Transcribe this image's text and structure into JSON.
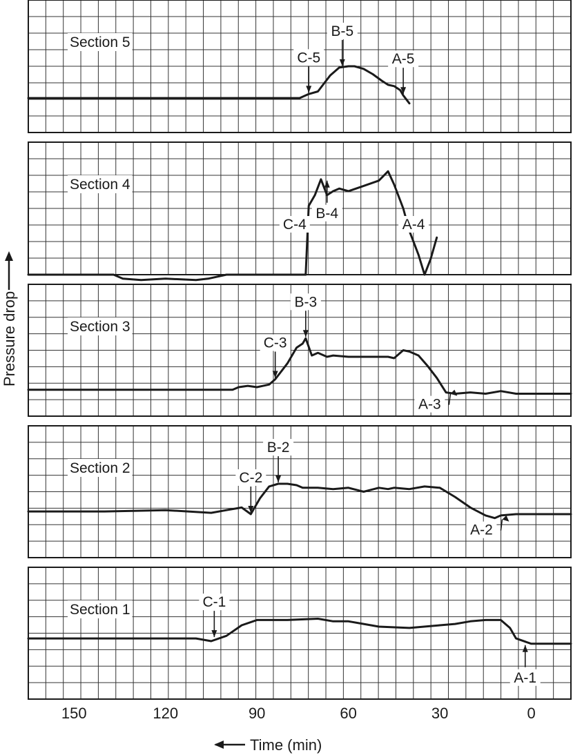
{
  "chart_data": {
    "type": "line",
    "xlabel": "Time (min)",
    "ylabel": "Pressure drop",
    "x_reversed": true,
    "xlim": [
      165,
      -13
    ],
    "x_ticks": [
      "150",
      "120",
      "90",
      "60",
      "30",
      "0"
    ],
    "x_tick_values": [
      150,
      120,
      90,
      60,
      30,
      0
    ],
    "grid": true,
    "panels": [
      {
        "title": "Section 5",
        "ylim": [
          0,
          10
        ],
        "series": [
          {
            "x": [
              165,
              76,
              73,
              70,
              68,
              66,
              63,
              60,
              58,
              55,
              52,
              49,
              47,
              45,
              43,
              42,
              40
            ],
            "y": [
              2.6,
              2.6,
              2.9,
              3.1,
              3.7,
              4.3,
              4.9,
              5.0,
              5.0,
              4.8,
              4.4,
              3.9,
              3.6,
              3.5,
              3.2,
              2.8,
              2.2
            ]
          }
        ],
        "annotations": [
          {
            "label": "C-5",
            "x": 73,
            "y": 2.9,
            "arrow": "down"
          },
          {
            "label": "B-5",
            "x": 62,
            "y": 4.9,
            "arrow": "down"
          },
          {
            "label": "A-5",
            "x": 42,
            "y": 2.8,
            "arrow": "down"
          }
        ]
      },
      {
        "title": "Section 4",
        "ylim": [
          0,
          10
        ],
        "series": [
          {
            "x": [
              165,
              137,
              134,
              128,
              120,
              110,
              106,
              100,
              90,
              80,
              74,
              73,
              71,
              69,
              67,
              65,
              63,
              60,
              55,
              50,
              47,
              45,
              42,
              40,
              37,
              35,
              33,
              31
            ],
            "y": [
              0,
              0,
              -0.3,
              -0.4,
              -0.3,
              -0.4,
              -0.3,
              0,
              0,
              0,
              0,
              5.2,
              6.0,
              7.2,
              6.0,
              6.3,
              6.5,
              6.3,
              6.7,
              7.1,
              7.8,
              6.8,
              5.0,
              3.3,
              1.5,
              0,
              1.2,
              2.8
            ]
          }
        ],
        "annotations": [
          {
            "label": "C-4",
            "x": 74,
            "y": 0,
            "arrow": "none"
          },
          {
            "label": "B-4",
            "x": 67,
            "y": 7.2,
            "arrow": "up"
          },
          {
            "label": "A-4",
            "x": 35,
            "y": 0,
            "arrow": "none"
          }
        ]
      },
      {
        "title": "Section 3",
        "ylim": [
          0,
          10
        ],
        "series": [
          {
            "x": [
              165,
              98,
              96,
              93,
              90,
              86,
              84,
              80,
              77,
              75,
              74,
              72,
              70,
              67,
              65,
              60,
              55,
              50,
              47,
              45,
              42,
              40,
              37,
              34,
              31,
              28,
              25,
              20,
              15,
              10,
              5,
              0,
              -13
            ],
            "y": [
              2.0,
              2.0,
              2.2,
              2.3,
              2.2,
              2.4,
              2.8,
              4.0,
              5.2,
              5.5,
              5.9,
              4.6,
              4.8,
              4.5,
              4.6,
              4.5,
              4.5,
              4.5,
              4.5,
              4.4,
              5.0,
              4.9,
              4.6,
              3.8,
              2.9,
              1.8,
              1.7,
              1.8,
              1.7,
              1.9,
              1.7,
              1.7,
              1.7
            ]
          }
        ],
        "annotations": [
          {
            "label": "C-3",
            "x": 84,
            "y": 2.8,
            "arrow": "down"
          },
          {
            "label": "B-3",
            "x": 74,
            "y": 5.9,
            "arrow": "down"
          },
          {
            "label": "A-3",
            "x": 27,
            "y": 1.8,
            "arrow": "left"
          }
        ]
      },
      {
        "title": "Section 2",
        "ylim": [
          0,
          10
        ],
        "series": [
          {
            "x": [
              165,
              140,
              120,
              105,
              100,
              95,
              92,
              89,
              86,
              83,
              80,
              77,
              75,
              70,
              65,
              60,
              55,
              50,
              47,
              45,
              40,
              35,
              30,
              25,
              20,
              15,
              12,
              10,
              5,
              0,
              -13
            ],
            "y": [
              3.5,
              3.5,
              3.6,
              3.4,
              3.6,
              3.8,
              3.3,
              4.5,
              5.4,
              5.6,
              5.6,
              5.5,
              5.3,
              5.3,
              5.2,
              5.3,
              5.0,
              5.3,
              5.2,
              5.3,
              5.2,
              5.4,
              5.3,
              4.6,
              3.8,
              3.2,
              3.0,
              3.2,
              3.3,
              3.3,
              3.3
            ]
          }
        ],
        "annotations": [
          {
            "label": "C-2",
            "x": 92,
            "y": 3.3,
            "arrow": "down"
          },
          {
            "label": "B-2",
            "x": 83,
            "y": 5.6,
            "arrow": "down"
          },
          {
            "label": "A-2",
            "x": 10,
            "y": 3.0,
            "arrow": "left"
          }
        ]
      },
      {
        "title": "Section 1",
        "ylim": [
          0,
          10
        ],
        "series": [
          {
            "x": [
              165,
              110,
              105,
              100,
              95,
              90,
              80,
              70,
              65,
              60,
              55,
              50,
              40,
              30,
              25,
              20,
              15,
              10,
              7,
              5,
              0,
              -13
            ],
            "y": [
              4.6,
              4.6,
              4.4,
              4.8,
              5.6,
              6.0,
              6.0,
              6.1,
              5.9,
              5.9,
              5.7,
              5.5,
              5.4,
              5.6,
              5.7,
              5.9,
              6.0,
              6.0,
              5.4,
              4.6,
              4.2,
              4.2
            ]
          }
        ],
        "annotations": [
          {
            "label": "C-1",
            "x": 104,
            "y": 4.6,
            "arrow": "down"
          },
          {
            "label": "A-1",
            "x": 2,
            "y": 4.2,
            "arrow": "up"
          }
        ]
      }
    ]
  }
}
